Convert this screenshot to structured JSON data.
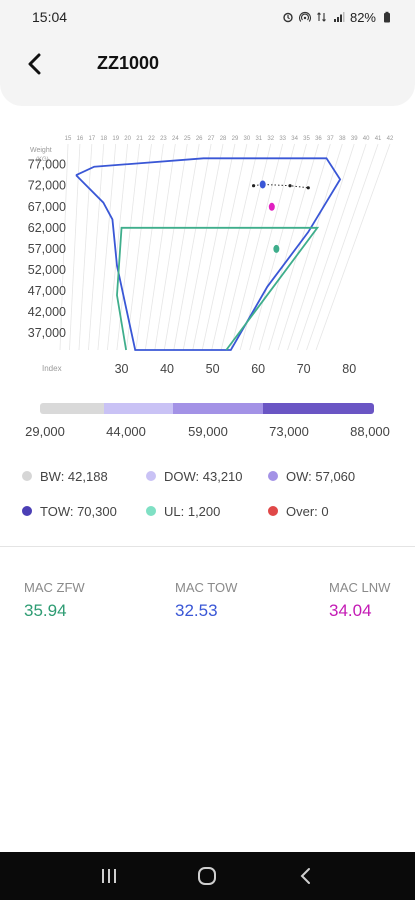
{
  "status_bar": {
    "time": "15:04",
    "battery": "82%",
    "icons": [
      "alarm-icon",
      "hotspot-icon",
      "data-icon",
      "signal-icon",
      "battery-icon"
    ]
  },
  "header": {
    "title": "ZZ1000",
    "back_icon": "chevron-left-icon"
  },
  "chart_data": {
    "type": "scatter",
    "title": "",
    "ylabel": "Weight (KG)",
    "xlabel": "Index",
    "y_ticks": [
      "77,000",
      "72,000",
      "67,000",
      "62,000",
      "57,000",
      "52,000",
      "47,000",
      "42,000",
      "37,000"
    ],
    "x_ticks": [
      "30",
      "40",
      "50",
      "60",
      "70",
      "80"
    ],
    "top_scale_ticks": [
      "15",
      "16",
      "17",
      "18",
      "19",
      "20",
      "21",
      "22",
      "23",
      "24",
      "25",
      "26",
      "27",
      "28",
      "29",
      "30",
      "31",
      "32",
      "33",
      "34",
      "35",
      "36",
      "37",
      "38",
      "39",
      "40",
      "41",
      "42"
    ],
    "ylim": [
      33000,
      80000
    ],
    "xlim": [
      20,
      85
    ],
    "envelopes": [
      {
        "name": "",
        "color": "#3a57d6",
        "points": [
          [
            20,
            74500
          ],
          [
            24,
            76500
          ],
          [
            48,
            78500
          ],
          [
            75,
            78500
          ],
          [
            78,
            73500
          ],
          [
            71,
            61000
          ],
          [
            62,
            48000
          ],
          [
            54,
            33000
          ],
          [
            33,
            33000
          ],
          [
            29,
            53000
          ],
          [
            28,
            64000
          ],
          [
            26,
            68000
          ],
          [
            20,
            74500
          ]
        ]
      },
      {
        "name": "",
        "color": "#3fae8c",
        "points": [
          [
            31,
            33000
          ],
          [
            29,
            46000
          ],
          [
            30,
            62000
          ],
          [
            73,
            62000
          ],
          [
            53,
            33000
          ]
        ]
      }
    ],
    "points": [
      {
        "name": "",
        "x": 61,
        "y": 72300,
        "color": "#3a57d6"
      },
      {
        "name": "",
        "x": 63,
        "y": 67000,
        "color": "#e020c0"
      },
      {
        "name": "",
        "x": 64,
        "y": 57000,
        "color": "#3fae8c"
      }
    ],
    "trajectory": [
      [
        59,
        72000
      ],
      [
        61,
        72300
      ],
      [
        67,
        72000
      ],
      [
        71,
        71500
      ]
    ]
  },
  "scale": {
    "labels": [
      "29,000",
      "44,000",
      "59,000",
      "73,000",
      "88,000"
    ],
    "colors": [
      "#d9d9d9",
      "#c9c2f5",
      "#a392e6",
      "#6a55c4"
    ]
  },
  "legend": [
    {
      "label": "BW: 42,188",
      "color": "#d6d6d6"
    },
    {
      "label": "DOW: 43,210",
      "color": "#c9c2f5"
    },
    {
      "label": "OW: 57,060",
      "color": "#a392e6"
    },
    {
      "label": "TOW: 70,300",
      "color": "#4b3fb5"
    },
    {
      "label": "UL: 1,200",
      "color": "#7fe0c4"
    },
    {
      "label": "Over: 0",
      "color": "#e04848"
    }
  ],
  "mac": {
    "zfw": {
      "label": "MAC ZFW",
      "value": "35.94",
      "color": "#2e9c73"
    },
    "tow": {
      "label": "MAC TOW",
      "value": "32.53",
      "color": "#3a57d6"
    },
    "lnw": {
      "label": "MAC LNW",
      "value": "34.04",
      "color": "#c41ab5"
    }
  },
  "nav": {
    "recents": "recents-icon",
    "home": "home-icon",
    "back": "back-icon"
  }
}
